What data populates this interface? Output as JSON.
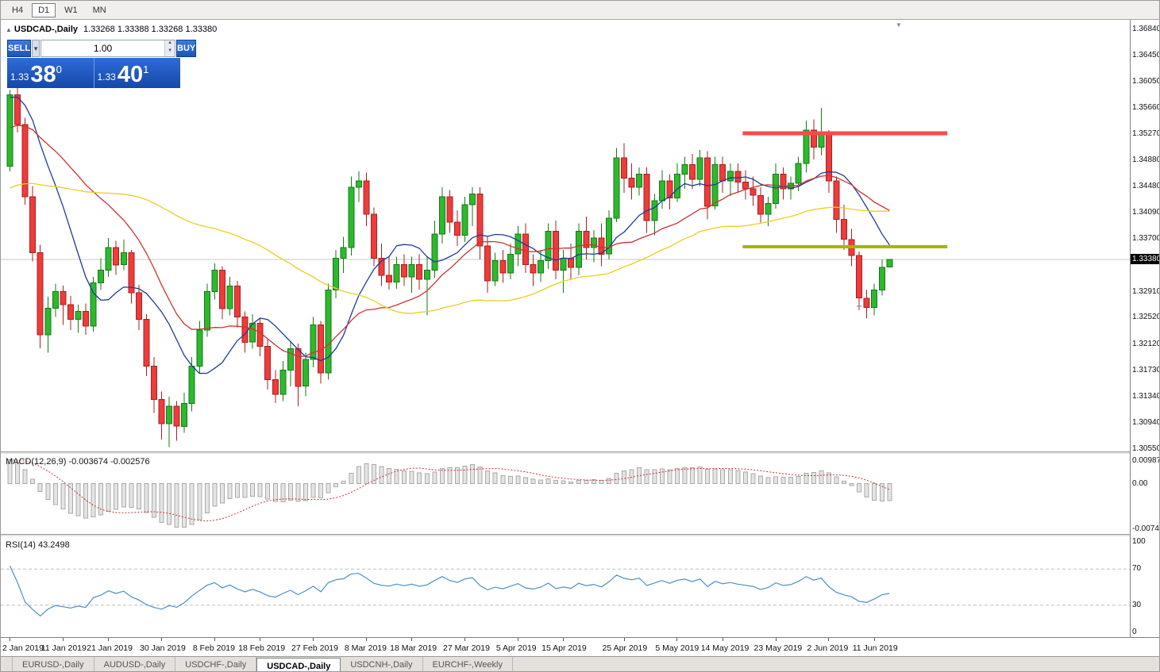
{
  "topbar": {
    "timeframes": [
      {
        "label": "H4",
        "active": false
      },
      {
        "label": "D1",
        "active": true
      },
      {
        "label": "W1",
        "active": false
      },
      {
        "label": "MN",
        "active": false
      }
    ]
  },
  "chart_header": {
    "collapse_icon": "▲",
    "symbol_label": "USDCAD-,Daily",
    "ohlc": "1.33268 1.33388 1.33268 1.33380"
  },
  "trade_panel": {
    "sell_label": "SELL",
    "buy_label": "BUY",
    "volume": "1.00",
    "dropdown_icon": "▼",
    "spin_up_icon": "▲",
    "spin_down_icon": "▼",
    "sell_price_prefix": "1.33",
    "sell_price_big": "38",
    "sell_price_sup": "0",
    "buy_price_prefix": "1.33",
    "buy_price_big": "40",
    "buy_price_sup": "1"
  },
  "price_axis": {
    "labels": [
      "1.36840",
      "1.36450",
      "1.36050",
      "1.35660",
      "1.35270",
      "1.34880",
      "1.34480",
      "1.34090",
      "1.33700",
      "1.32910",
      "1.32520",
      "1.32120",
      "1.31730",
      "1.31340",
      "1.30940",
      "1.30550"
    ],
    "current": "1.33380"
  },
  "macd_panel": {
    "title": "MACD(12,26,9) -0.003674 -0.002576",
    "axis": [
      "0.009874",
      "0.00",
      "-0.00746"
    ]
  },
  "rsi_panel": {
    "title": "RSI(14) 43.2498",
    "axis": [
      "100",
      "70",
      "30",
      "0"
    ]
  },
  "time_axis": {
    "labels": [
      {
        "index": 0,
        "text": "2 Jan 2019"
      },
      {
        "index": 7,
        "text": "11 Jan 2019"
      },
      {
        "index": 13,
        "text": "21 Jan 2019"
      },
      {
        "index": 20,
        "text": "30 Jan 2019"
      },
      {
        "index": 27,
        "text": "8 Feb 2019"
      },
      {
        "index": 33,
        "text": "18 Feb 2019"
      },
      {
        "index": 40,
        "text": "27 Feb 2019"
      },
      {
        "index": 47,
        "text": "8 Mar 2019"
      },
      {
        "index": 53,
        "text": "18 Mar 2019"
      },
      {
        "index": 60,
        "text": "27 Mar 2019"
      },
      {
        "index": 67,
        "text": "5 Apr 2019"
      },
      {
        "index": 73,
        "text": "15 Apr 2019"
      },
      {
        "index": 81,
        "text": "25 Apr 2019"
      },
      {
        "index": 88,
        "text": "5 May 2019"
      },
      {
        "index": 94,
        "text": "14 May 2019"
      },
      {
        "index": 101,
        "text": "23 May 2019"
      },
      {
        "index": 108,
        "text": "2 Jun 2019"
      },
      {
        "index": 114,
        "text": "11 Jun 2019"
      }
    ]
  },
  "bottom_tabs": [
    {
      "label": "EURUSD-,Daily",
      "active": false
    },
    {
      "label": "AUDUSD-,Daily",
      "active": false
    },
    {
      "label": "USDCHF-,Daily",
      "active": false
    },
    {
      "label": "USDCAD-,Daily",
      "active": true
    },
    {
      "label": "USDCNH-,Daily",
      "active": false
    },
    {
      "label": "EURCHF-,Weekly",
      "active": false
    }
  ],
  "chart_data": {
    "type": "candlestick",
    "symbol": "USDCAD",
    "timeframe": "Daily",
    "ylim": [
      1.3055,
      1.3684
    ],
    "current_price": 1.3338,
    "colors": {
      "bull": "#2eb82e",
      "bull_border": "#157a15",
      "bear": "#ee3b3b",
      "bear_border": "#a82020",
      "macd_hist": "#aaaaaa",
      "macd_hist_fill": "#e4e4e4",
      "macd_signal": "#cc3333",
      "rsi": "#4a90c8",
      "current_line": "#c8c8c8"
    },
    "moving_averages": [
      {
        "period": 10,
        "color": "#1e3c96"
      },
      {
        "period": 21,
        "color": "#cc3333"
      },
      {
        "period": 50,
        "color": "#e8cf20"
      }
    ],
    "levels": {
      "resistance": {
        "price": 1.3527,
        "from_index": 97,
        "to_index": 124,
        "color": "#fa4b4b"
      },
      "support": {
        "price": 1.3357,
        "from_index": 97,
        "to_index": 124,
        "color": "#a8b400"
      }
    },
    "indicators": {
      "macd": {
        "fast": 12,
        "slow": 26,
        "signal": 9,
        "main_value": -0.003674,
        "signal_value": -0.002576
      },
      "rsi": {
        "period": 14,
        "value": 43.2498
      }
    },
    "annotations": [
      {
        "type": "cross",
        "index": 112,
        "price": 1.3268
      }
    ],
    "candles": [
      [
        1.3478,
        1.3592,
        1.347,
        1.3585
      ],
      [
        1.3585,
        1.3605,
        1.3528,
        1.354
      ],
      [
        1.354,
        1.355,
        1.342,
        1.3432
      ],
      [
        1.3432,
        1.3448,
        1.3335,
        1.3348
      ],
      [
        1.3348,
        1.336,
        1.3205,
        1.3225
      ],
      [
        1.3225,
        1.3282,
        1.3198,
        1.3265
      ],
      [
        1.3265,
        1.3302,
        1.3252,
        1.329
      ],
      [
        1.329,
        1.3299,
        1.324,
        1.327
      ],
      [
        1.327,
        1.3283,
        1.3232,
        1.3248
      ],
      [
        1.3248,
        1.327,
        1.3228,
        1.326
      ],
      [
        1.326,
        1.3272,
        1.3225,
        1.3238
      ],
      [
        1.3238,
        1.3312,
        1.323,
        1.3303
      ],
      [
        1.3303,
        1.334,
        1.3292,
        1.3322
      ],
      [
        1.3322,
        1.337,
        1.3312,
        1.3356
      ],
      [
        1.3356,
        1.3366,
        1.3315,
        1.333
      ],
      [
        1.333,
        1.3368,
        1.3322,
        1.3348
      ],
      [
        1.3348,
        1.3352,
        1.3272,
        1.3288
      ],
      [
        1.3288,
        1.33,
        1.3232,
        1.3248
      ],
      [
        1.3248,
        1.3256,
        1.3163,
        1.3178
      ],
      [
        1.3178,
        1.3192,
        1.3108,
        1.3128
      ],
      [
        1.3128,
        1.314,
        1.3068,
        1.3092
      ],
      [
        1.3092,
        1.3132,
        1.3057,
        1.3118
      ],
      [
        1.3118,
        1.3126,
        1.3066,
        1.3088
      ],
      [
        1.3088,
        1.3138,
        1.3078,
        1.3122
      ],
      [
        1.3122,
        1.3192,
        1.311,
        1.3178
      ],
      [
        1.3178,
        1.3246,
        1.3168,
        1.3232
      ],
      [
        1.3232,
        1.3302,
        1.3222,
        1.329
      ],
      [
        1.329,
        1.3332,
        1.3278,
        1.3322
      ],
      [
        1.3322,
        1.3328,
        1.3248,
        1.3264
      ],
      [
        1.3264,
        1.3312,
        1.3254,
        1.3298
      ],
      [
        1.3298,
        1.3306,
        1.3236,
        1.3252
      ],
      [
        1.3252,
        1.326,
        1.3198,
        1.3214
      ],
      [
        1.3214,
        1.3256,
        1.3204,
        1.3242
      ],
      [
        1.3242,
        1.325,
        1.3193,
        1.3208
      ],
      [
        1.3208,
        1.3218,
        1.3143,
        1.3158
      ],
      [
        1.3158,
        1.3172,
        1.3123,
        1.3136
      ],
      [
        1.3136,
        1.3186,
        1.3126,
        1.3172
      ],
      [
        1.3172,
        1.3216,
        1.3148,
        1.3204
      ],
      [
        1.3204,
        1.3212,
        1.3118,
        1.3148
      ],
      [
        1.3148,
        1.3198,
        1.3133,
        1.3188
      ],
      [
        1.3188,
        1.3252,
        1.3176,
        1.324
      ],
      [
        1.324,
        1.3246,
        1.3152,
        1.3168
      ],
      [
        1.3168,
        1.3302,
        1.3158,
        1.3292
      ],
      [
        1.3292,
        1.3352,
        1.328,
        1.334
      ],
      [
        1.334,
        1.3372,
        1.3318,
        1.3356
      ],
      [
        1.3356,
        1.3462,
        1.3344,
        1.3446
      ],
      [
        1.3446,
        1.347,
        1.3424,
        1.3456
      ],
      [
        1.3456,
        1.3468,
        1.3388,
        1.3406
      ],
      [
        1.3406,
        1.3416,
        1.3328,
        1.334
      ],
      [
        1.334,
        1.3362,
        1.3298,
        1.3314
      ],
      [
        1.3314,
        1.3342,
        1.3293,
        1.3304
      ],
      [
        1.3304,
        1.3342,
        1.3294,
        1.333
      ],
      [
        1.333,
        1.3346,
        1.3298,
        1.3312
      ],
      [
        1.3312,
        1.3342,
        1.3288,
        1.333
      ],
      [
        1.333,
        1.3346,
        1.3293,
        1.3308
      ],
      [
        1.3308,
        1.3342,
        1.3254,
        1.3322
      ],
      [
        1.3322,
        1.3396,
        1.331,
        1.3376
      ],
      [
        1.3376,
        1.3446,
        1.3362,
        1.3432
      ],
      [
        1.3432,
        1.3442,
        1.3378,
        1.3394
      ],
      [
        1.3394,
        1.3412,
        1.3358,
        1.3374
      ],
      [
        1.3374,
        1.3432,
        1.3364,
        1.342
      ],
      [
        1.342,
        1.3446,
        1.3388,
        1.3436
      ],
      [
        1.3436,
        1.3446,
        1.3338,
        1.3358
      ],
      [
        1.3358,
        1.3372,
        1.3288,
        1.3306
      ],
      [
        1.3306,
        1.3348,
        1.3298,
        1.3336
      ],
      [
        1.3336,
        1.3352,
        1.3303,
        1.3318
      ],
      [
        1.3318,
        1.3362,
        1.3308,
        1.3346
      ],
      [
        1.3346,
        1.3388,
        1.3328,
        1.3376
      ],
      [
        1.3376,
        1.3392,
        1.3318,
        1.333
      ],
      [
        1.333,
        1.3346,
        1.3298,
        1.3318
      ],
      [
        1.3318,
        1.3352,
        1.3304,
        1.3336
      ],
      [
        1.3336,
        1.3392,
        1.3324,
        1.338
      ],
      [
        1.338,
        1.3396,
        1.3308,
        1.3322
      ],
      [
        1.3322,
        1.3352,
        1.3288,
        1.334
      ],
      [
        1.334,
        1.3362,
        1.3308,
        1.3326
      ],
      [
        1.3326,
        1.3392,
        1.3314,
        1.338
      ],
      [
        1.338,
        1.3402,
        1.3338,
        1.3356
      ],
      [
        1.3356,
        1.3382,
        1.3334,
        1.337
      ],
      [
        1.337,
        1.3392,
        1.3328,
        1.3346
      ],
      [
        1.3346,
        1.3412,
        1.3338,
        1.34
      ],
      [
        1.34,
        1.3505,
        1.3394,
        1.349
      ],
      [
        1.349,
        1.3512,
        1.3438,
        1.346
      ],
      [
        1.346,
        1.3482,
        1.3428,
        1.3446
      ],
      [
        1.3446,
        1.3476,
        1.3434,
        1.3466
      ],
      [
        1.3466,
        1.3476,
        1.3378,
        1.3396
      ],
      [
        1.3396,
        1.3436,
        1.3374,
        1.3426
      ],
      [
        1.3426,
        1.3472,
        1.3414,
        1.3456
      ],
      [
        1.3456,
        1.3466,
        1.3413,
        1.343
      ],
      [
        1.343,
        1.3482,
        1.3424,
        1.3466
      ],
      [
        1.3466,
        1.3492,
        1.3444,
        1.348
      ],
      [
        1.348,
        1.3496,
        1.3443,
        1.3458
      ],
      [
        1.3458,
        1.3502,
        1.3448,
        1.349
      ],
      [
        1.349,
        1.35,
        1.3398,
        1.3418
      ],
      [
        1.3418,
        1.3492,
        1.3413,
        1.348
      ],
      [
        1.348,
        1.3492,
        1.3438,
        1.3456
      ],
      [
        1.3456,
        1.3482,
        1.3433,
        1.347
      ],
      [
        1.347,
        1.3482,
        1.3438,
        1.3454
      ],
      [
        1.3454,
        1.3472,
        1.3428,
        1.3444
      ],
      [
        1.3444,
        1.3462,
        1.3418,
        1.3434
      ],
      [
        1.3434,
        1.3446,
        1.3393,
        1.3406
      ],
      [
        1.3406,
        1.3432,
        1.3388,
        1.3422
      ],
      [
        1.3422,
        1.3482,
        1.3414,
        1.3466
      ],
      [
        1.3466,
        1.3476,
        1.3428,
        1.3444
      ],
      [
        1.3444,
        1.3462,
        1.3428,
        1.3452
      ],
      [
        1.3452,
        1.3492,
        1.344,
        1.3482
      ],
      [
        1.3482,
        1.3546,
        1.3468,
        1.3532
      ],
      [
        1.3532,
        1.3548,
        1.3488,
        1.3506
      ],
      [
        1.3506,
        1.3565,
        1.3494,
        1.3528
      ],
      [
        1.3528,
        1.3532,
        1.3438,
        1.3456
      ],
      [
        1.3456,
        1.3462,
        1.3378,
        1.3398
      ],
      [
        1.3398,
        1.342,
        1.3352,
        1.3368
      ],
      [
        1.3368,
        1.3384,
        1.3328,
        1.3344
      ],
      [
        1.3344,
        1.335,
        1.3262,
        1.328
      ],
      [
        1.328,
        1.3292,
        1.325,
        1.3266
      ],
      [
        1.3266,
        1.3302,
        1.3254,
        1.3292
      ],
      [
        1.3292,
        1.3338,
        1.3284,
        1.3326
      ],
      [
        1.33268,
        1.33388,
        1.33268,
        1.3338
      ]
    ]
  }
}
